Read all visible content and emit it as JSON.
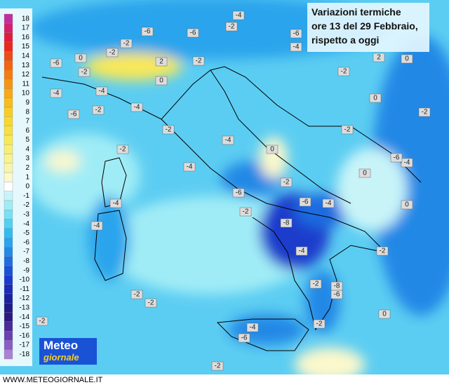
{
  "header": {
    "lines": [
      "Variazioni termiche",
      "ore 13 del 29 Febbraio,",
      "rispetto a oggi"
    ]
  },
  "legend": [
    {
      "label": "18",
      "color": "#c0309c"
    },
    {
      "label": "17",
      "color": "#d4206a"
    },
    {
      "label": "16",
      "color": "#e01c3c"
    },
    {
      "label": "15",
      "color": "#e82a1c"
    },
    {
      "label": "14",
      "color": "#ee4a14"
    },
    {
      "label": "13",
      "color": "#f26410"
    },
    {
      "label": "12",
      "color": "#f47c10"
    },
    {
      "label": "11",
      "color": "#f69414"
    },
    {
      "label": "10",
      "color": "#f8a818"
    },
    {
      "label": "9",
      "color": "#f8bc1c"
    },
    {
      "label": "8",
      "color": "#f8cc24"
    },
    {
      "label": "7",
      "color": "#f8d830"
    },
    {
      "label": "6",
      "color": "#f8e040"
    },
    {
      "label": "5",
      "color": "#f8e858"
    },
    {
      "label": "4",
      "color": "#f8ee74"
    },
    {
      "label": "3",
      "color": "#f8f290"
    },
    {
      "label": "2",
      "color": "#f8f4ac"
    },
    {
      "label": "1",
      "color": "#fbf8cc"
    },
    {
      "label": "0",
      "color": "#ffffff"
    },
    {
      "label": "-1",
      "color": "#c8f4f8"
    },
    {
      "label": "-2",
      "color": "#a0ecf6"
    },
    {
      "label": "-3",
      "color": "#78e0f4"
    },
    {
      "label": "-4",
      "color": "#50d0f2"
    },
    {
      "label": "-5",
      "color": "#30bcf0"
    },
    {
      "label": "-6",
      "color": "#2aa4ec"
    },
    {
      "label": "-7",
      "color": "#2488e6"
    },
    {
      "label": "-8",
      "color": "#1e6ce0"
    },
    {
      "label": "-9",
      "color": "#1a52d6"
    },
    {
      "label": "-10",
      "color": "#1a3ccc"
    },
    {
      "label": "-11",
      "color": "#1a2cb8"
    },
    {
      "label": "-12",
      "color": "#1a22a0"
    },
    {
      "label": "-13",
      "color": "#1e1c88"
    },
    {
      "label": "-14",
      "color": "#2a1a80"
    },
    {
      "label": "-15",
      "color": "#4a2a98"
    },
    {
      "label": "-16",
      "color": "#6a40b0"
    },
    {
      "label": "-17",
      "color": "#8a5cc4"
    },
    {
      "label": "-18",
      "color": "#aa80d4"
    }
  ],
  "map_labels": [
    "-4",
    "-6",
    "-6",
    "-2",
    "-2",
    "-2",
    "-6",
    "-4",
    "0",
    "-6",
    "-2",
    "2",
    "-2",
    "0",
    "-2",
    "2",
    "0",
    "-4",
    "-4",
    "-4",
    "-2",
    "-6",
    "0",
    "-2",
    "-2",
    "-2",
    "-4",
    "-2",
    "0",
    "-4",
    "-6",
    "-4",
    "0",
    "-2",
    "-6",
    "-4",
    "-6",
    "-4",
    "0",
    "-2",
    "-4",
    "-8",
    "-4",
    "-2",
    "-2",
    "-8",
    "-6",
    "-2",
    "-2",
    "0",
    "-2",
    "-2",
    "-4",
    "-6",
    "-2"
  ],
  "logo": {
    "line1": "Meteo",
    "line2": "giornale"
  },
  "footer": "WWW.METEOGIORNALE.IT"
}
